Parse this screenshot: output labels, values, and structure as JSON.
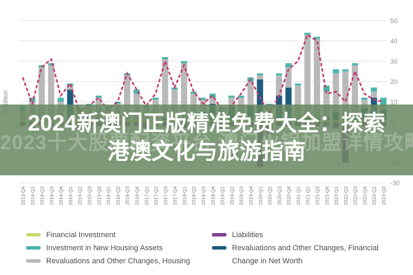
{
  "overlay": {
    "title_line1": "2024新澳门正版精准免费大全：探索",
    "title_line2": "港澳文化与旅游指南",
    "watermark": "2023十大股票配资平台 澳门火锅加盟详情攻略",
    "band_color_rgba": "rgba(104,136,97,0.86)"
  },
  "chart_data": {
    "type": "bar",
    "subtype": "stacked-bars-with-line",
    "title": "",
    "xlabel": "",
    "ylabel": "€ Billion",
    "ylim": [
      -30,
      50
    ],
    "y_ticks": [
      50,
      40,
      30,
      20,
      10,
      0,
      -10,
      -20,
      -30
    ],
    "grid": true,
    "legend_position": "bottom",
    "categories": [
      "2013-Q4",
      "2014-Q1",
      "2014-Q2",
      "2014-Q3",
      "2014-Q4",
      "2015-Q1",
      "2015-Q2",
      "2015-Q3",
      "2015-Q4",
      "2016-Q1",
      "2016-Q2",
      "2016-Q3",
      "2016-Q4",
      "2017-Q1",
      "2017-Q2",
      "2017-Q3",
      "2017-Q4",
      "2018-Q1",
      "2018-Q2",
      "2018-Q3",
      "2018-Q4",
      "2019-Q1",
      "2019-Q2",
      "2019-Q3",
      "2019-Q4",
      "2020-Q1",
      "2020-Q2",
      "2020-Q3",
      "2020-Q4",
      "2021-Q1",
      "2021-Q2",
      "2021-Q3",
      "2021-Q4",
      "2022-Q1",
      "2022-Q2",
      "2022-Q3",
      "2022-Q4",
      "2023-Q1",
      "2023-Q2"
    ],
    "series": [
      {
        "name": "Financial Investment",
        "type": "bar",
        "color": "#c9d96f",
        "values": [
          1,
          1,
          1,
          1,
          1,
          1,
          1,
          1,
          1,
          1,
          1,
          1,
          1,
          1,
          1,
          1,
          1,
          1,
          1,
          1,
          1,
          1,
          1,
          1,
          1,
          1,
          1,
          1,
          1,
          1,
          1,
          1,
          1,
          1,
          1,
          1,
          1,
          1,
          1
        ]
      },
      {
        "name": "Revaluations and Other Changes, Financial",
        "type": "bar",
        "color": "#1f5b7d",
        "values": [
          0,
          0,
          1,
          1,
          0,
          15,
          0,
          0,
          1,
          0,
          0,
          0,
          0,
          0,
          0,
          1,
          1,
          1,
          0,
          4,
          8,
          0,
          7,
          0,
          7,
          20,
          0,
          12,
          16,
          1,
          1,
          1,
          1,
          4,
          1,
          1,
          6,
          11,
          5
        ]
      },
      {
        "name": "Revaluations and Other Changes, Housing",
        "type": "bar",
        "color": "#b9b9b9",
        "values": [
          5,
          9,
          25,
          26,
          9,
          2,
          5,
          7,
          10,
          6,
          8,
          22,
          13,
          6,
          10,
          29,
          14,
          27,
          13,
          6,
          3,
          5,
          4,
          11,
          12,
          2,
          7,
          10,
          10,
          16,
          41,
          39,
          13,
          19,
          23,
          26,
          4,
          3,
          2
        ]
      },
      {
        "name": "Investment in New Housing Assets",
        "type": "bar",
        "color": "#4ab5ab",
        "values": [
          2,
          2,
          1,
          1,
          2,
          1,
          1,
          1,
          1,
          1,
          1,
          1,
          2,
          1,
          1,
          1,
          1,
          1,
          1,
          1,
          2,
          1,
          1,
          1,
          2,
          1,
          1,
          1,
          2,
          1,
          1,
          1,
          3,
          2,
          1,
          1,
          1,
          2,
          4
        ]
      },
      {
        "name": "Liabilities",
        "type": "bar",
        "color": "#7d4496",
        "values": [
          -2,
          -3,
          -2,
          -2,
          -2,
          -2,
          -3,
          -2,
          -2,
          -3,
          -2,
          -2,
          -2,
          -3,
          -2,
          -2,
          -2,
          -3,
          -2,
          -3,
          -2,
          -3,
          -2,
          -2,
          -2,
          -22,
          -6,
          -2,
          -2,
          -2,
          -2,
          -2,
          -2,
          -3,
          -20,
          -3,
          -2,
          -2,
          -2
        ]
      },
      {
        "name": "Change in Net Worth",
        "type": "line",
        "dashed": true,
        "color": "#c23b6e",
        "values": [
          22,
          9,
          27,
          31,
          13,
          19,
          5,
          8,
          12,
          6,
          10,
          24,
          16,
          8,
          14,
          30,
          17,
          28,
          15,
          9,
          13,
          6,
          8,
          14,
          21,
          12,
          4,
          13,
          26,
          30,
          43,
          40,
          14,
          15,
          10,
          25,
          14,
          11,
          10
        ]
      }
    ],
    "legend_layout": {
      "left": [
        0,
        3,
        2
      ],
      "right": [
        4,
        1,
        5
      ]
    },
    "axis_text_color": "#8f8f8f",
    "gridline_color": "#e4e4e4"
  }
}
